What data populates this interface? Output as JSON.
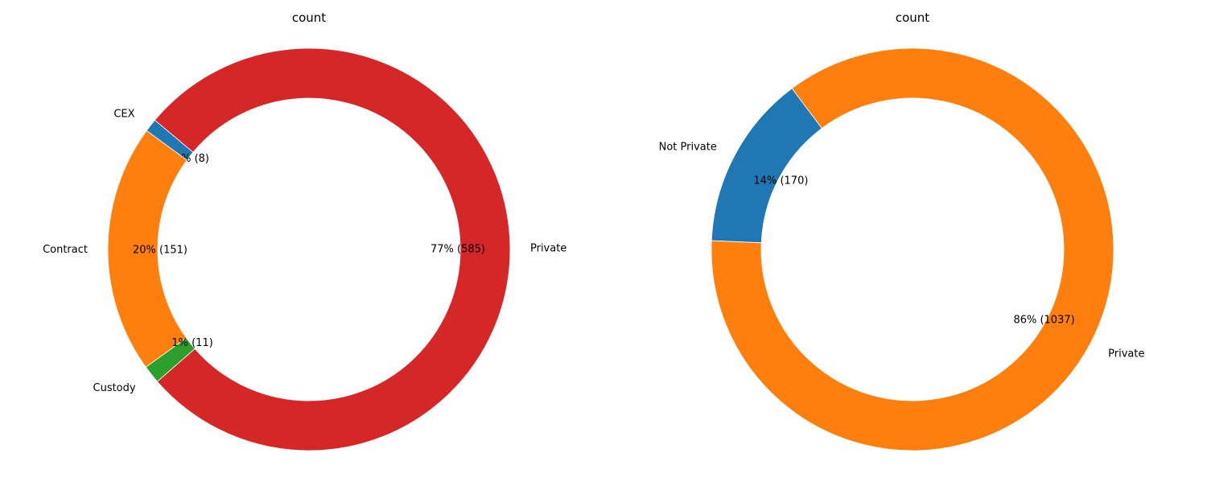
{
  "chart_data": [
    {
      "type": "pie",
      "style": "donut",
      "title": "count",
      "categories": [
        "CEX",
        "Contract",
        "Custody",
        "Private"
      ],
      "values": [
        8,
        151,
        11,
        585
      ],
      "percent_labels": [
        "1% (8)",
        "20% (151)",
        "1% (11)",
        "77% (585)"
      ],
      "colors": [
        "#1f77b4",
        "#ff7f0e",
        "#2ca02c",
        "#d62728"
      ]
    },
    {
      "type": "pie",
      "style": "donut",
      "title": "count",
      "categories": [
        "Not Private",
        "Private"
      ],
      "values": [
        170,
        1037
      ],
      "percent_labels": [
        "14% (170)",
        "86% (1037)"
      ],
      "colors": [
        "#1f77b4",
        "#ff7f0e"
      ]
    }
  ]
}
